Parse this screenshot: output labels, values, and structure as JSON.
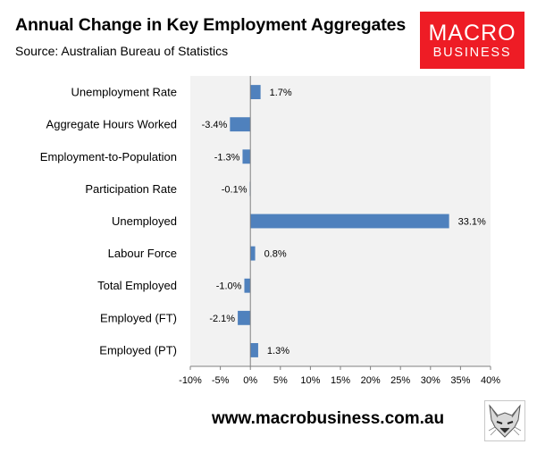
{
  "header": {
    "title": "Annual Change in Key Employment Aggregates",
    "subtitle": "Source: Australian Bureau of Statistics"
  },
  "logo": {
    "line1": "MACRO",
    "line2": "BUSINESS",
    "color": "#ee1c25"
  },
  "footer": {
    "url": "www.macrobusiness.com.au",
    "mascot_icon": "fox-icon"
  },
  "colors": {
    "bar": "#4f81bd",
    "plot_background": "#f2f2f2",
    "axis": "#808080"
  },
  "chart_data": {
    "type": "bar",
    "orientation": "horizontal",
    "categories": [
      "Unemployment Rate",
      "Aggregate Hours Worked",
      "Employment-to-Population",
      "Participation Rate",
      "Unemployed",
      "Labour Force",
      "Total Employed",
      "Employed (FT)",
      "Employed (PT)"
    ],
    "values": [
      1.7,
      -3.4,
      -1.3,
      -0.1,
      33.1,
      0.8,
      -1.0,
      -2.1,
      1.3
    ],
    "data_labels": [
      "1.7%",
      "-3.4%",
      "-1.3%",
      "-0.1%",
      "33.1%",
      "0.8%",
      "-1.0%",
      "-2.1%",
      "1.3%"
    ],
    "xlim": [
      -10,
      40
    ],
    "x_ticks": [
      -10,
      -5,
      0,
      5,
      10,
      15,
      20,
      25,
      30,
      35,
      40
    ],
    "x_tick_labels": [
      "-10%",
      "-5%",
      "0%",
      "5%",
      "10%",
      "15%",
      "20%",
      "25%",
      "30%",
      "35%",
      "40%"
    ],
    "grid": false,
    "legend": "none"
  }
}
